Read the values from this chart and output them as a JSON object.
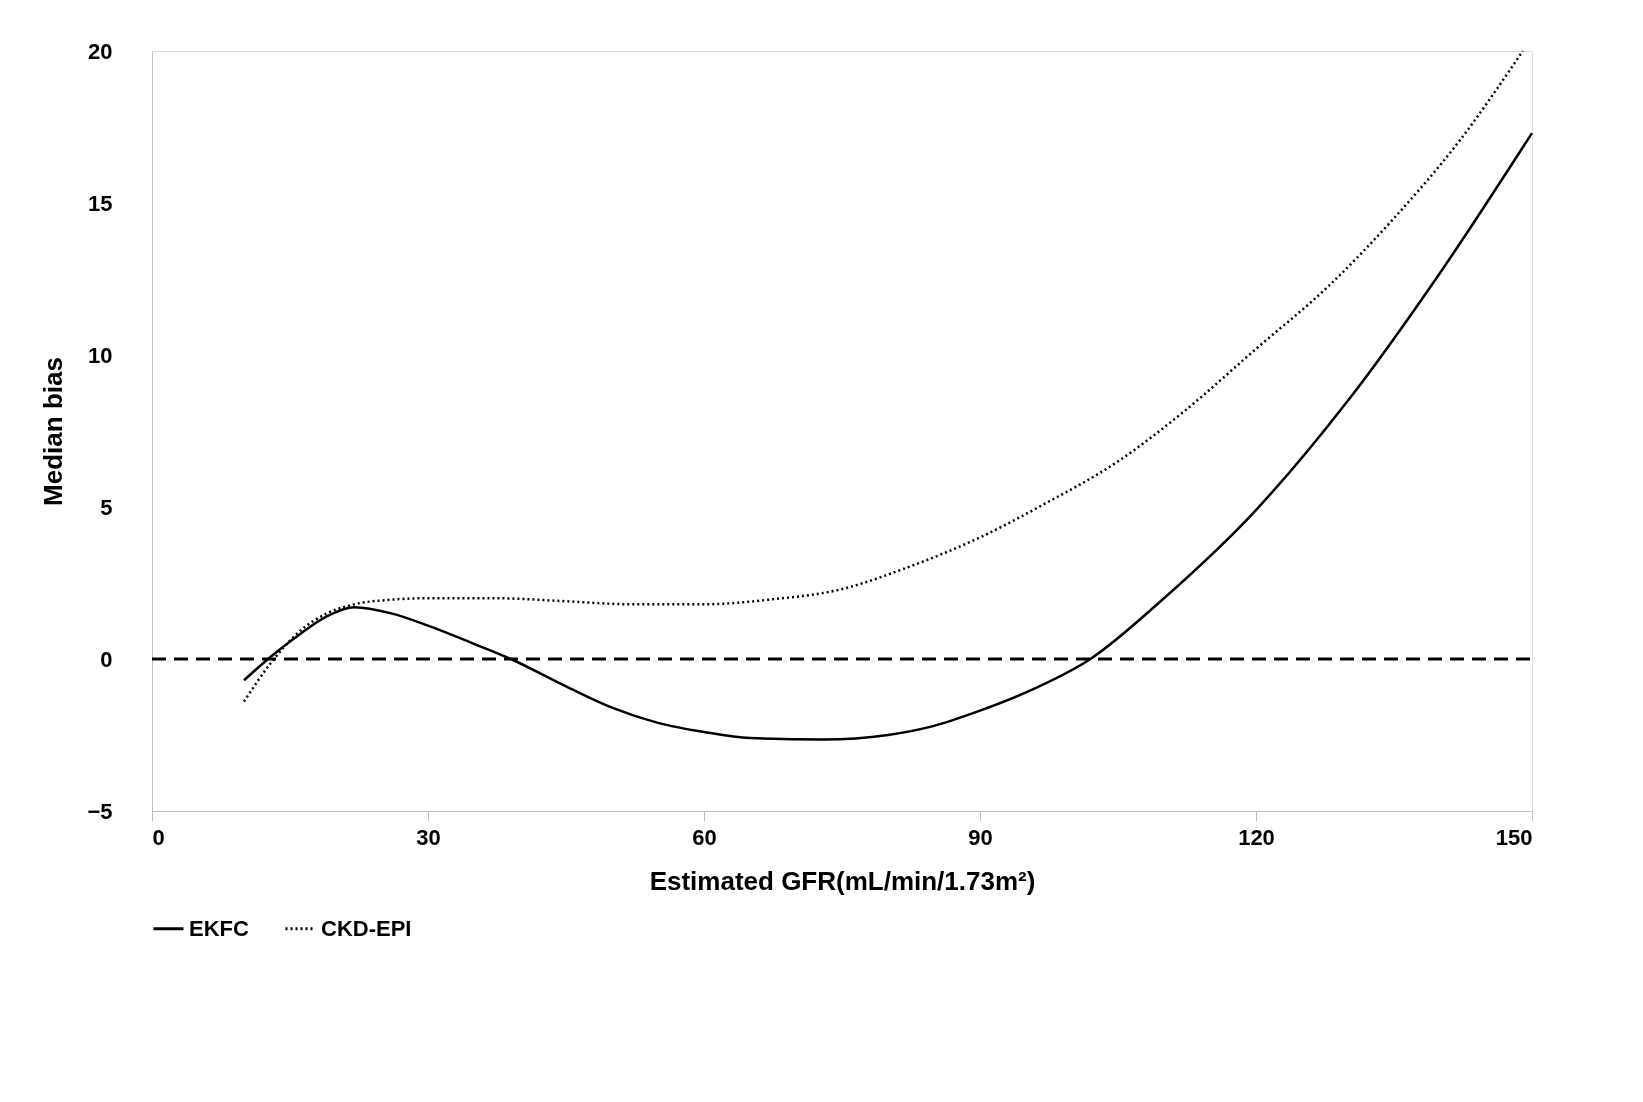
{
  "chart_data": {
    "type": "line",
    "xlabel": "Estimated GFR(mL/min/1.73m²)",
    "ylabel": "Median bias",
    "xlim": [
      0,
      150
    ],
    "xticks": [
      0,
      30,
      60,
      90,
      120,
      150
    ],
    "ylim": [
      -5,
      20
    ],
    "yticks": [
      -5,
      0,
      5,
      10,
      15,
      20
    ],
    "grid": false,
    "legend": "bottom",
    "marker": "none",
    "ref_lines": [
      {
        "axis": "y",
        "value": 0,
        "label": null,
        "color": "#000000",
        "line_style": "dashed"
      }
    ],
    "series": [
      {
        "name": "EKFC",
        "color": "#000000",
        "line_style": "solid",
        "x": [
          10,
          13,
          16,
          19,
          22,
          26,
          30,
          35,
          39,
          45,
          50,
          55,
          60,
          65,
          73,
          80,
          85,
          90,
          95,
          102,
          110,
          120,
          130,
          140,
          150
        ],
        "values": [
          -0.7,
          0.1,
          0.8,
          1.4,
          1.7,
          1.5,
          1.1,
          0.5,
          0,
          -0.9,
          -1.6,
          -2.1,
          -2.4,
          -2.6,
          -2.65,
          -2.5,
          -2.2,
          -1.7,
          -1.1,
          0,
          2,
          4.9,
          8.5,
          12.7,
          17.3
        ]
      },
      {
        "name": "CKD-EPI",
        "color": "#000000",
        "line_style": "dotted",
        "x": [
          10,
          13,
          16,
          19,
          22,
          26,
          30,
          37,
          45,
          52,
          60,
          67,
          75,
          82,
          90,
          97,
          105,
          112,
          120,
          128,
          135,
          142,
          149
        ],
        "values": [
          -1.4,
          -0.1,
          0.9,
          1.5,
          1.8,
          1.95,
          2.0,
          2.0,
          1.9,
          1.8,
          1.8,
          1.95,
          2.3,
          3.0,
          4.0,
          5.1,
          6.5,
          8.1,
          10.2,
          12.3,
          14.5,
          17.0,
          20
        ]
      }
    ]
  }
}
